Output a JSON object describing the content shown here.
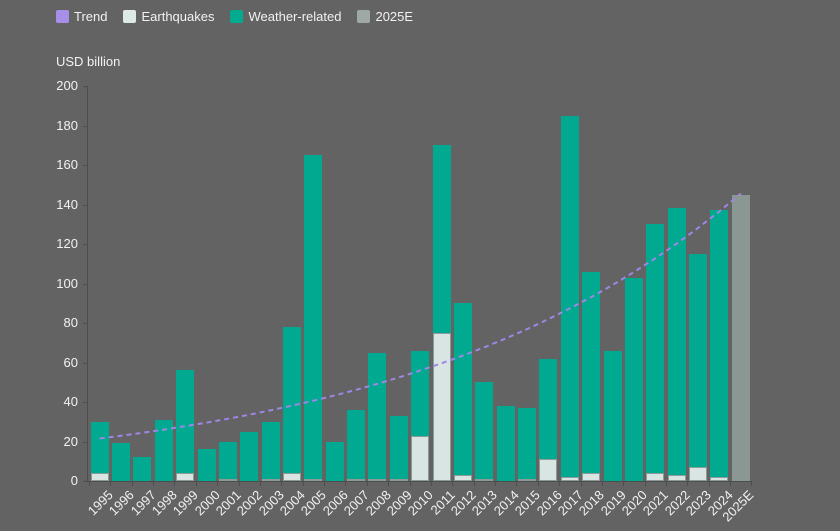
{
  "background_color": "#636363",
  "text_color": "#F2F2F2",
  "axis_color": "#4D4D4D",
  "axis_title": "USD billion",
  "legend": {
    "items": [
      {
        "label": "Trend",
        "color": "#A78FE9"
      },
      {
        "label": "Earthquakes",
        "color": "#DDEAE7"
      },
      {
        "label": "Weather-related",
        "color": "#00AB8E"
      },
      {
        "label": "2025E",
        "color": "#9EA8A5"
      }
    ]
  },
  "chart_data": {
    "type": "bar",
    "stacked": true,
    "ylabel": "USD billion",
    "ylim": [
      0,
      200
    ],
    "ytick_step": 20,
    "grid": false,
    "legend_position": "top-left",
    "categories": [
      "1995",
      "1996",
      "1997",
      "1998",
      "1999",
      "2000",
      "2001",
      "2002",
      "2003",
      "2004",
      "2005",
      "2006",
      "2007",
      "2008",
      "2009",
      "2010",
      "2011",
      "2012",
      "2013",
      "2014",
      "2015",
      "2016",
      "2017",
      "2018",
      "2019",
      "2020",
      "2021",
      "2022",
      "2023",
      "2024",
      "2025E"
    ],
    "series": [
      {
        "name": "Earthquakes",
        "color": "#D9E5E2",
        "values": [
          4,
          0,
          0,
          0,
          4,
          0,
          1,
          0,
          1,
          4,
          1,
          0,
          1,
          1,
          1,
          23,
          75,
          3,
          1,
          0,
          1,
          11,
          2,
          4,
          0,
          0,
          4,
          3,
          7,
          2,
          0
        ]
      },
      {
        "name": "Weather-related",
        "color": "#00A98F",
        "values": [
          26,
          19,
          12,
          31,
          52,
          16,
          19,
          25,
          29,
          74,
          164,
          20,
          35,
          64,
          32,
          43,
          95,
          87,
          49,
          38,
          36,
          51,
          183,
          102,
          66,
          103,
          126,
          135,
          108,
          135,
          0
        ]
      },
      {
        "name": "2025E",
        "color": "#8B9793",
        "values": [
          0,
          0,
          0,
          0,
          0,
          0,
          0,
          0,
          0,
          0,
          0,
          0,
          0,
          0,
          0,
          0,
          0,
          0,
          0,
          0,
          0,
          0,
          0,
          0,
          0,
          0,
          0,
          0,
          0,
          0,
          145
        ]
      }
    ],
    "totals": [
      30,
      19,
      12,
      31,
      56,
      16,
      20,
      25,
      30,
      78,
      165,
      20,
      36,
      65,
      33,
      66,
      170,
      90,
      50,
      38,
      37,
      62,
      185,
      106,
      66,
      103,
      130,
      138,
      115,
      137,
      145
    ],
    "trend": {
      "name": "Trend",
      "color": "#9F86E6",
      "style": "dashed",
      "interpolation": "exponential",
      "start_category": "1995",
      "end_category": "2025E",
      "start_value": 21.5,
      "end_value": 145.5
    }
  }
}
